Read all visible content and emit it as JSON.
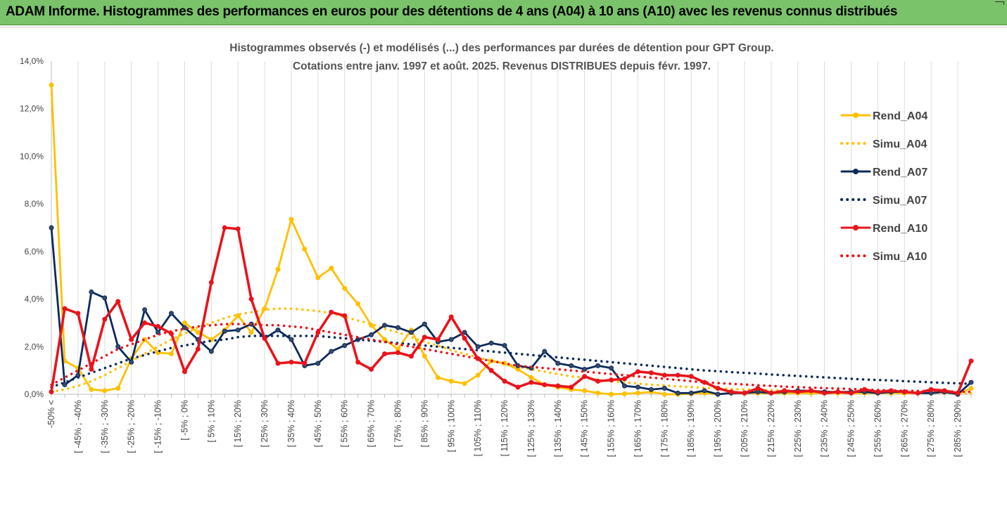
{
  "banner": {
    "title": "ADAM Informe. Histogrammes des performances en euros pour des détentions de 4 ans (A04) à 10 ans (A10) avec les revenus connus distribués"
  },
  "chart_data": {
    "type": "line",
    "title_lines": [
      "Histogrammes observés (-) et modélisés (...) des performances par durées de détention pour GPT Group.",
      "Cotations entre janv. 1997 et août. 2025. Revenus DISTRIBUES depuis févr. 1997."
    ],
    "y_ticks": [
      "0,0%",
      "2,0%",
      "4,0%",
      "6,0%",
      "8,0%",
      "10,0%",
      "12,0%",
      "14,0%"
    ],
    "ylim": [
      0,
      14
    ],
    "grid": "vertical",
    "legend_position": "top-right",
    "x_labels": [
      "-50% <",
      "[ -45% ; -40%",
      "[ -35% ; -30%",
      "[ -25% ; -20%",
      "[ -15% ; -10%",
      "[ -5% ; 0%",
      "[ 5% ; 10%",
      "[ 15% ; 20%",
      "[ 25% ; 30%",
      "[ 35% ; 40%",
      "[ 45% ; 50%",
      "[ 55% ; 60%",
      "[ 65% ; 70%",
      "[ 75% ; 80%",
      "[ 85% ; 90%",
      "[ 95% ; 100%",
      "[ 105% ; 110%",
      "[ 115% ; 120%",
      "[ 125% ; 130%",
      "[ 135% ; 140%",
      "[ 145% ; 150%",
      "[ 155% ; 160%",
      "[ 165% ; 170%",
      "[ 175% ; 180%",
      "[ 185% ; 190%",
      "[ 195% ; 200%",
      "[ 205% ; 210%",
      "[ 215% ; 220%",
      "[ 225% ; 230%",
      "[ 235% ; 240%",
      "[ 245% ; 250%",
      "[ 255% ; 260%",
      "[ 265% ; 270%",
      "[ 275% ; 280%",
      "[ 285% ; 290%"
    ],
    "n_categories": 70,
    "series": [
      {
        "name": "Rend_A04",
        "color": "#ffc000",
        "style": "solid",
        "values": [
          13.0,
          1.4,
          1.1,
          0.2,
          0.15,
          0.25,
          1.5,
          2.3,
          1.75,
          1.7,
          3.0,
          2.6,
          2.3,
          2.7,
          3.3,
          2.6,
          3.6,
          5.25,
          7.35,
          6.1,
          4.9,
          5.3,
          4.45,
          3.8,
          2.9,
          2.3,
          1.9,
          2.7,
          1.6,
          0.7,
          0.55,
          0.45,
          0.8,
          1.4,
          1.3,
          1.05,
          0.7,
          0.4,
          0.3,
          0.2,
          0.15,
          0.05,
          0.0,
          0.02,
          0.05,
          0.1,
          0.0,
          0.0,
          0.02,
          0.05,
          0.0,
          0.05,
          0.05,
          0.05,
          0.05,
          0.05,
          0.05,
          0.05,
          0.05,
          0.05,
          0.05,
          0.05,
          0.05,
          0.05,
          0.05,
          0.05,
          0.05,
          0.1,
          0.0,
          0.25
        ]
      },
      {
        "name": "Simu_A04",
        "color": "#ffc000",
        "style": "dotted",
        "values": [
          0.1,
          0.2,
          0.35,
          0.55,
          0.8,
          1.1,
          1.4,
          1.7,
          2.0,
          2.3,
          2.55,
          2.8,
          3.0,
          3.2,
          3.35,
          3.45,
          3.55,
          3.6,
          3.6,
          3.55,
          3.5,
          3.4,
          3.25,
          3.1,
          2.95,
          2.75,
          2.6,
          2.4,
          2.2,
          2.05,
          1.85,
          1.7,
          1.55,
          1.4,
          1.3,
          1.15,
          1.05,
          0.95,
          0.85,
          0.75,
          0.7,
          0.6,
          0.55,
          0.5,
          0.45,
          0.4,
          0.37,
          0.33,
          0.3,
          0.27,
          0.25,
          0.22,
          0.2,
          0.18,
          0.17,
          0.15,
          0.14,
          0.12,
          0.11,
          0.1,
          0.09,
          0.08,
          0.08,
          0.07,
          0.06,
          0.06,
          0.05,
          0.05,
          0.04,
          0.04
        ]
      },
      {
        "name": "Rend_A07",
        "color": "#0b2a5c",
        "style": "solid",
        "values": [
          7.0,
          0.4,
          0.8,
          4.3,
          4.05,
          2.0,
          1.35,
          3.55,
          2.6,
          3.4,
          2.8,
          2.3,
          1.8,
          2.65,
          2.7,
          2.95,
          2.35,
          2.7,
          2.3,
          1.2,
          1.3,
          1.8,
          2.05,
          2.3,
          2.5,
          2.9,
          2.8,
          2.6,
          2.95,
          2.2,
          2.3,
          2.6,
          2.0,
          2.15,
          2.05,
          1.2,
          1.1,
          1.8,
          1.3,
          1.2,
          1.05,
          1.2,
          1.1,
          0.35,
          0.3,
          0.2,
          0.25,
          0.05,
          0.05,
          0.15,
          0.0,
          0.05,
          0.05,
          0.1,
          0.05,
          0.1,
          0.15,
          0.15,
          0.1,
          0.1,
          0.1,
          0.1,
          0.05,
          0.1,
          0.1,
          0.05,
          0.05,
          0.1,
          0.0,
          0.5
        ]
      },
      {
        "name": "Simu_A07",
        "color": "#0b2a5c",
        "style": "dotted",
        "values": [
          0.3,
          0.5,
          0.7,
          0.9,
          1.1,
          1.3,
          1.5,
          1.65,
          1.8,
          1.95,
          2.05,
          2.15,
          2.25,
          2.3,
          2.4,
          2.45,
          2.45,
          2.45,
          2.45,
          2.45,
          2.45,
          2.4,
          2.35,
          2.3,
          2.25,
          2.2,
          2.15,
          2.1,
          2.05,
          2.0,
          1.95,
          1.9,
          1.85,
          1.8,
          1.75,
          1.7,
          1.65,
          1.6,
          1.55,
          1.5,
          1.45,
          1.4,
          1.35,
          1.3,
          1.25,
          1.2,
          1.15,
          1.1,
          1.05,
          1.0,
          0.97,
          0.93,
          0.9,
          0.87,
          0.83,
          0.8,
          0.77,
          0.74,
          0.71,
          0.68,
          0.65,
          0.62,
          0.6,
          0.58,
          0.55,
          0.53,
          0.5,
          0.48,
          0.46,
          0.44
        ]
      },
      {
        "name": "Rend_A10",
        "color": "#e8141c",
        "style": "solid",
        "values": [
          0.1,
          3.6,
          3.4,
          1.05,
          3.15,
          3.9,
          2.3,
          3.0,
          2.85,
          2.55,
          0.95,
          1.9,
          4.7,
          7.0,
          6.95,
          4.0,
          2.35,
          1.3,
          1.35,
          1.3,
          2.6,
          3.45,
          3.3,
          1.35,
          1.05,
          1.7,
          1.75,
          1.6,
          2.4,
          2.3,
          3.25,
          2.35,
          1.5,
          1.0,
          0.55,
          0.3,
          0.5,
          0.4,
          0.35,
          0.3,
          0.75,
          0.55,
          0.6,
          0.65,
          0.95,
          0.9,
          0.8,
          0.8,
          0.75,
          0.5,
          0.25,
          0.1,
          0.05,
          0.25,
          0.05,
          0.15,
          0.1,
          0.15,
          0.05,
          0.1,
          0.05,
          0.2,
          0.1,
          0.15,
          0.1,
          0.05,
          0.2,
          0.15,
          0.05,
          1.4
        ]
      },
      {
        "name": "Simu_A10",
        "color": "#e8141c",
        "style": "dotted",
        "values": [
          0.4,
          0.7,
          1.0,
          1.3,
          1.6,
          1.9,
          2.1,
          2.3,
          2.5,
          2.65,
          2.75,
          2.85,
          2.9,
          2.95,
          2.95,
          2.95,
          2.9,
          2.9,
          2.85,
          2.8,
          2.7,
          2.6,
          2.5,
          2.4,
          2.3,
          2.2,
          2.1,
          2.0,
          1.9,
          1.8,
          1.7,
          1.6,
          1.5,
          1.4,
          1.3,
          1.2,
          1.15,
          1.1,
          1.05,
          1.0,
          0.95,
          0.9,
          0.85,
          0.8,
          0.75,
          0.7,
          0.65,
          0.6,
          0.55,
          0.5,
          0.47,
          0.44,
          0.41,
          0.38,
          0.35,
          0.32,
          0.3,
          0.28,
          0.26,
          0.24,
          0.22,
          0.2,
          0.18,
          0.16,
          0.15,
          0.14,
          0.13,
          0.12,
          0.11,
          0.1
        ]
      }
    ]
  }
}
